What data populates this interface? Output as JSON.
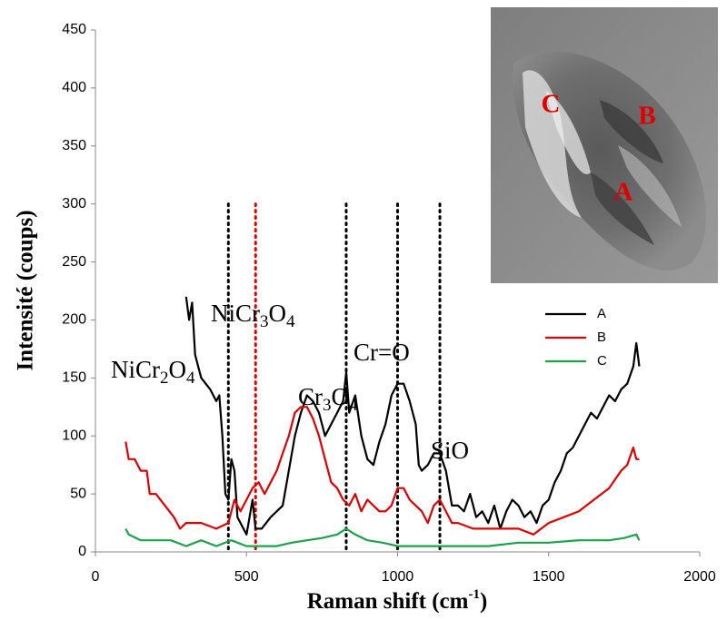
{
  "chart_data": {
    "type": "line",
    "y_label": "Intensité (coups)",
    "x_label_parts": [
      "Raman shift (cm",
      "-1",
      ")"
    ],
    "xlim": [
      0,
      2000
    ],
    "xticks": [
      0,
      500,
      1000,
      1500,
      2000
    ],
    "ylim": [
      0,
      450
    ],
    "yticks": [
      0,
      50,
      100,
      150,
      200,
      250,
      300,
      350,
      400,
      450
    ],
    "legend": "right",
    "reference_lines": [
      {
        "x": 440,
        "color": "#000000"
      },
      {
        "x": 530,
        "color": "#e00000"
      },
      {
        "x": 830,
        "color": "#000000"
      },
      {
        "x": 1000,
        "color": "#000000"
      },
      {
        "x": 1140,
        "color": "#000000"
      }
    ],
    "annotations": [
      {
        "parts": [
          "NiCr",
          "2",
          "O",
          "4"
        ]
      },
      {
        "parts": [
          "NiCr",
          "3",
          "O",
          "4"
        ]
      },
      {
        "parts": [
          "Cr",
          "3",
          "O",
          "4"
        ]
      },
      {
        "parts": [
          "Cr=O"
        ]
      },
      {
        "parts": [
          "SiO"
        ]
      }
    ],
    "series": [
      {
        "name": "A",
        "color": "#000000",
        "x": [
          300,
          310,
          320,
          330,
          350,
          380,
          400,
          410,
          420,
          430,
          440,
          450,
          460,
          470,
          480,
          500,
          510,
          520,
          530,
          550,
          580,
          600,
          620,
          640,
          660,
          680,
          700,
          720,
          740,
          760,
          780,
          800,
          820,
          830,
          840,
          860,
          880,
          900,
          920,
          940,
          960,
          980,
          1000,
          1020,
          1040,
          1060,
          1070,
          1080,
          1100,
          1120,
          1140,
          1160,
          1180,
          1200,
          1220,
          1240,
          1260,
          1280,
          1300,
          1320,
          1340,
          1360,
          1380,
          1400,
          1420,
          1440,
          1460,
          1480,
          1500,
          1520,
          1540,
          1560,
          1580,
          1600,
          1620,
          1640,
          1660,
          1680,
          1700,
          1720,
          1740,
          1760,
          1780,
          1790,
          1800
        ],
        "values": [
          220,
          200,
          215,
          170,
          150,
          140,
          130,
          135,
          100,
          50,
          45,
          80,
          70,
          30,
          25,
          15,
          30,
          45,
          20,
          20,
          30,
          35,
          40,
          70,
          100,
          120,
          135,
          130,
          120,
          100,
          110,
          120,
          130,
          155,
          120,
          135,
          100,
          80,
          75,
          95,
          110,
          135,
          145,
          145,
          130,
          110,
          75,
          70,
          75,
          85,
          85,
          70,
          40,
          40,
          35,
          50,
          30,
          35,
          25,
          40,
          20,
          35,
          45,
          40,
          30,
          35,
          25,
          40,
          45,
          60,
          70,
          85,
          90,
          100,
          110,
          120,
          115,
          125,
          135,
          130,
          140,
          145,
          160,
          180,
          160
        ]
      },
      {
        "name": "B",
        "color": "#e00000",
        "x": [
          100,
          110,
          130,
          150,
          170,
          180,
          200,
          230,
          260,
          280,
          300,
          350,
          400,
          440,
          460,
          480,
          500,
          520,
          540,
          560,
          580,
          600,
          620,
          640,
          660,
          680,
          700,
          720,
          740,
          760,
          780,
          800,
          820,
          840,
          860,
          880,
          900,
          920,
          940,
          960,
          980,
          1000,
          1020,
          1040,
          1060,
          1080,
          1100,
          1120,
          1140,
          1160,
          1180,
          1200,
          1250,
          1300,
          1350,
          1400,
          1450,
          1500,
          1550,
          1600,
          1650,
          1700,
          1740,
          1760,
          1780,
          1790,
          1800
        ],
        "values": [
          95,
          80,
          80,
          70,
          70,
          50,
          50,
          40,
          30,
          20,
          25,
          25,
          20,
          25,
          45,
          35,
          45,
          55,
          60,
          50,
          60,
          70,
          85,
          100,
          120,
          125,
          125,
          115,
          100,
          80,
          60,
          55,
          45,
          40,
          50,
          35,
          45,
          40,
          35,
          35,
          40,
          55,
          55,
          45,
          40,
          35,
          25,
          40,
          45,
          35,
          25,
          25,
          20,
          20,
          20,
          20,
          15,
          25,
          30,
          35,
          45,
          55,
          70,
          75,
          90,
          80,
          80
        ]
      },
      {
        "name": "C",
        "color": "#1aa34a",
        "x": [
          100,
          110,
          150,
          200,
          250,
          300,
          350,
          400,
          450,
          500,
          550,
          600,
          650,
          700,
          750,
          800,
          830,
          860,
          900,
          950,
          1000,
          1050,
          1100,
          1150,
          1200,
          1300,
          1400,
          1500,
          1600,
          1700,
          1750,
          1790,
          1800
        ],
        "values": [
          20,
          15,
          10,
          10,
          10,
          5,
          10,
          5,
          10,
          5,
          5,
          5,
          8,
          10,
          12,
          15,
          20,
          15,
          10,
          8,
          5,
          5,
          5,
          5,
          5,
          5,
          8,
          8,
          10,
          10,
          12,
          15,
          10
        ]
      }
    ]
  },
  "inset": {
    "labels": [
      "C",
      "B",
      "A"
    ]
  }
}
